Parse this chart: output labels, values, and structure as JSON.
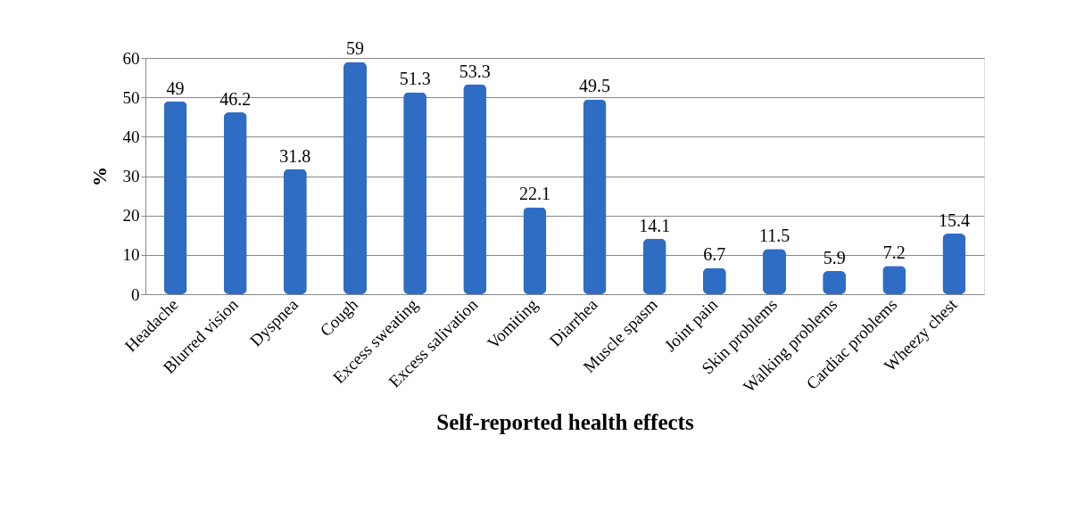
{
  "chart_data": {
    "type": "bar",
    "xlabel": "Self-reported health effects",
    "ylabel": "%",
    "categories": [
      "Headache",
      "Blurred vision",
      "Dyspnea",
      "Cough",
      "Excess sweating",
      "Excess salivation",
      "Vomiting",
      "Diarrhea",
      "Muscle spasm",
      "Joint pain",
      "Skin problems",
      "Walking problems",
      "Cardiac problems",
      "Wheezy chest"
    ],
    "values": [
      49,
      46.2,
      31.8,
      59,
      51.3,
      53.3,
      22.1,
      49.5,
      14.1,
      6.7,
      11.5,
      5.9,
      7.2,
      15.4
    ],
    "color": "#2f6dc4",
    "ylim": [
      0,
      60
    ],
    "yticks": [
      0,
      10,
      20,
      30,
      40,
      50,
      60
    ],
    "grid": "y",
    "data_labels": true
  }
}
